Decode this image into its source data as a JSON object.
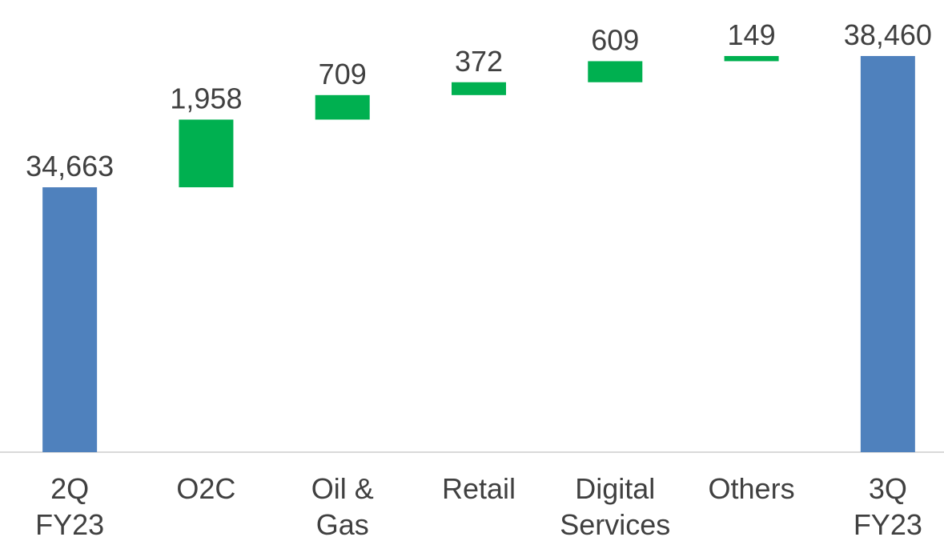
{
  "chart_data": {
    "type": "waterfall",
    "categories": [
      "2Q\nFY23",
      "O2C",
      "Oil &\nGas",
      "Retail",
      "Digital\nServices",
      "Others",
      "3Q\nFY23"
    ],
    "values": [
      34663,
      1958,
      709,
      372,
      609,
      149,
      38460
    ],
    "value_labels": [
      "34,663",
      "1,958",
      "709",
      "372",
      "609",
      "149",
      "38,460"
    ],
    "total_color": "#4f81bd",
    "increase_color": "#00b050",
    "ylim": [
      27000,
      40000
    ]
  }
}
